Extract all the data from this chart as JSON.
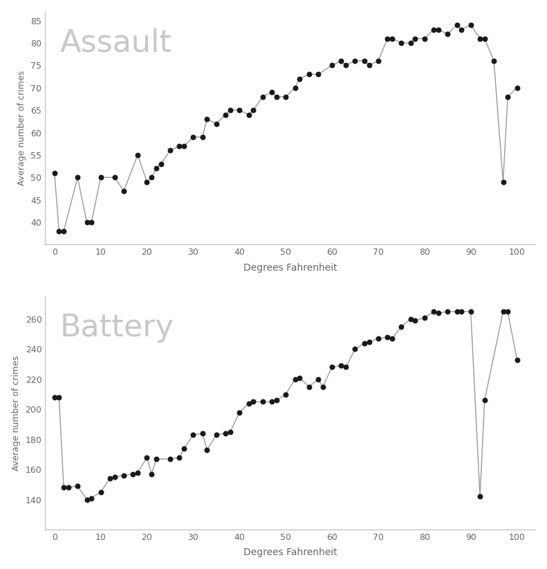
{
  "assault_x": [
    0,
    1,
    2,
    5,
    7,
    8,
    10,
    13,
    15,
    18,
    20,
    21,
    22,
    23,
    25,
    27,
    28,
    30,
    32,
    33,
    35,
    37,
    38,
    40,
    42,
    43,
    45,
    47,
    48,
    50,
    52,
    53,
    55,
    57,
    60,
    62,
    63,
    65,
    67,
    68,
    70,
    72,
    73,
    75,
    77,
    78,
    80,
    82,
    83,
    85,
    87,
    88,
    90,
    92,
    93,
    95,
    97,
    98,
    100
  ],
  "assault_y": [
    51,
    38,
    38,
    50,
    40,
    40,
    50,
    50,
    47,
    55,
    49,
    50,
    52,
    53,
    56,
    57,
    57,
    59,
    59,
    63,
    62,
    64,
    65,
    65,
    64,
    65,
    68,
    69,
    68,
    68,
    70,
    72,
    73,
    73,
    75,
    76,
    75,
    76,
    76,
    75,
    76,
    81,
    81,
    80,
    80,
    81,
    81,
    83,
    83,
    82,
    84,
    83,
    84,
    81,
    81,
    76,
    49,
    68,
    70
  ],
  "battery_x": [
    0,
    1,
    2,
    3,
    5,
    7,
    8,
    10,
    12,
    13,
    15,
    17,
    18,
    20,
    21,
    22,
    25,
    27,
    28,
    30,
    32,
    33,
    35,
    37,
    38,
    40,
    42,
    43,
    45,
    47,
    48,
    50,
    52,
    53,
    55,
    57,
    58,
    60,
    62,
    63,
    65,
    67,
    68,
    70,
    72,
    73,
    75,
    77,
    78,
    80,
    82,
    83,
    85,
    87,
    88,
    90,
    92,
    93,
    97,
    98,
    100
  ],
  "battery_y": [
    208,
    208,
    148,
    148,
    149,
    140,
    141,
    145,
    154,
    155,
    156,
    157,
    158,
    168,
    157,
    167,
    167,
    168,
    174,
    183,
    184,
    173,
    183,
    184,
    185,
    198,
    204,
    205,
    205,
    205,
    206,
    210,
    220,
    221,
    215,
    220,
    215,
    228,
    229,
    228,
    240,
    244,
    245,
    247,
    248,
    247,
    255,
    260,
    259,
    261,
    265,
    264,
    265,
    265,
    265,
    265,
    142,
    206,
    265,
    265,
    233
  ],
  "assault_title": "Assault",
  "battery_title": "Battery",
  "xlabel": "Degrees Fahrenheit",
  "ylabel": "Average number of crimes",
  "line_color": "#999999",
  "marker_color": "#1a1a1a",
  "title_color": "#c8c8c8",
  "bg_color": "#ffffff",
  "assault_ylim": [
    35,
    87
  ],
  "battery_ylim": [
    120,
    275
  ],
  "assault_yticks": [
    40,
    45,
    50,
    55,
    60,
    65,
    70,
    75,
    80,
    85
  ],
  "battery_yticks": [
    140,
    160,
    180,
    200,
    220,
    240,
    260
  ],
  "xticks": [
    0,
    10,
    20,
    30,
    40,
    50,
    60,
    70,
    80,
    90,
    100
  ],
  "xlim": [
    -2,
    104
  ]
}
